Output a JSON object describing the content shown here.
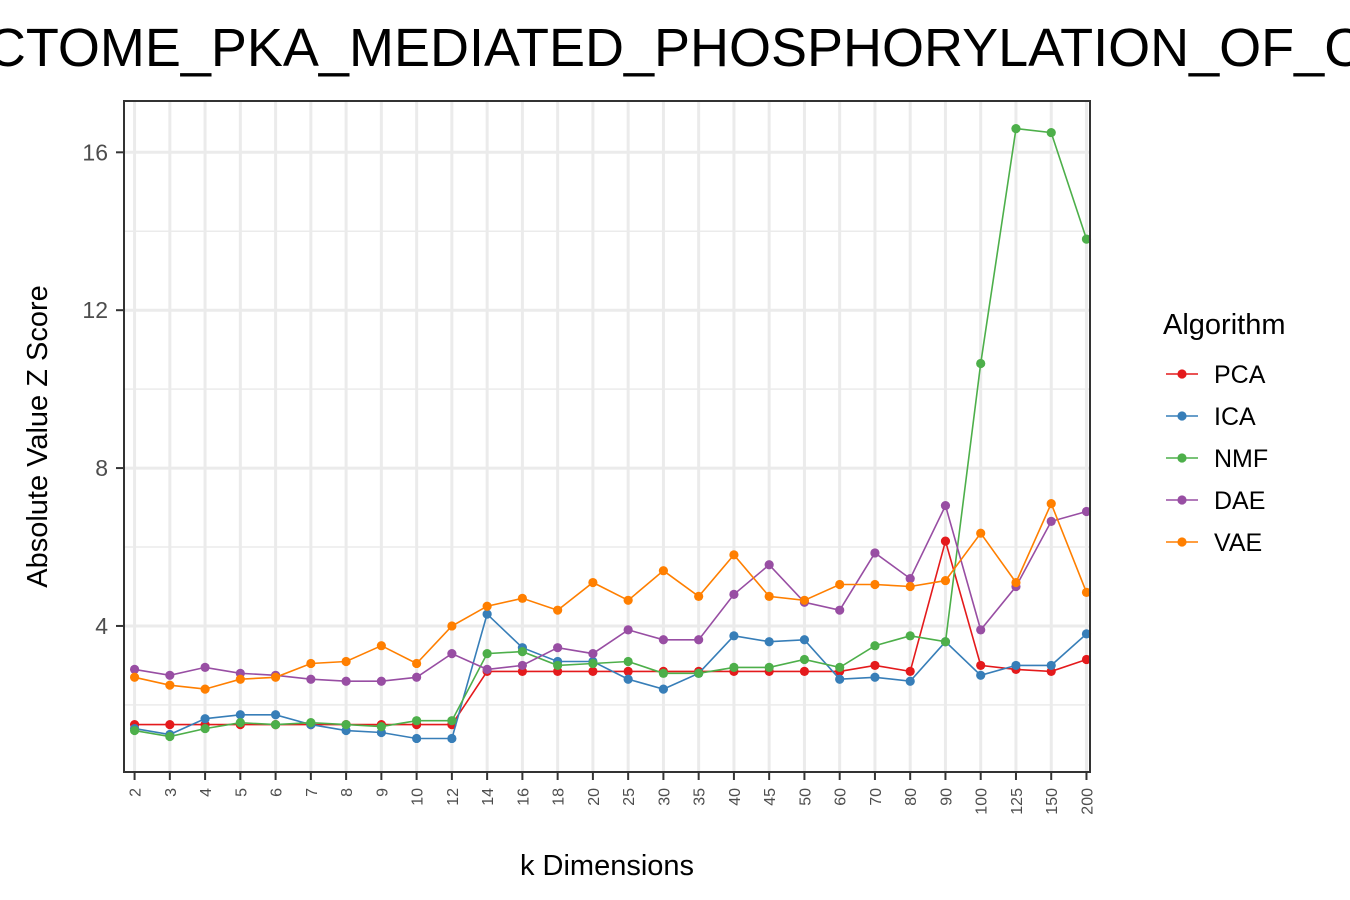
{
  "chart_data": {
    "type": "line",
    "title": "REACTOME_PKA_MEDIATED_PHOSPHORYLATION_OF_CREB",
    "xlabel": "k Dimensions",
    "ylabel": "Absolute Value Z Score",
    "categories": [
      "2",
      "3",
      "4",
      "5",
      "6",
      "7",
      "8",
      "9",
      "10",
      "12",
      "14",
      "16",
      "18",
      "20",
      "25",
      "30",
      "35",
      "40",
      "45",
      "50",
      "60",
      "70",
      "80",
      "90",
      "100",
      "125",
      "150",
      "200"
    ],
    "yticks": [
      4,
      8,
      12,
      16
    ],
    "ylim": [
      0.3,
      17.3
    ],
    "grid": true,
    "legend": {
      "title": "Algorithm",
      "position": "right"
    },
    "series": [
      {
        "name": "PCA",
        "color": "#e41a1c",
        "values": [
          1.5,
          1.5,
          1.5,
          1.5,
          1.5,
          1.5,
          1.5,
          1.5,
          1.5,
          1.5,
          2.85,
          2.85,
          2.85,
          2.85,
          2.85,
          2.85,
          2.85,
          2.85,
          2.85,
          2.85,
          2.85,
          3.0,
          2.85,
          6.15,
          3.0,
          2.9,
          2.85,
          3.15
        ]
      },
      {
        "name": "ICA",
        "color": "#377eb8",
        "values": [
          1.4,
          1.25,
          1.65,
          1.75,
          1.75,
          1.5,
          1.35,
          1.3,
          1.15,
          1.15,
          4.3,
          3.45,
          3.1,
          3.1,
          2.65,
          2.4,
          2.8,
          3.75,
          3.6,
          3.65,
          2.65,
          2.7,
          2.6,
          3.6,
          2.75,
          3.0,
          3.0,
          3.8
        ]
      },
      {
        "name": "NMF",
        "color": "#4daf4a",
        "values": [
          1.35,
          1.2,
          1.4,
          1.55,
          1.5,
          1.55,
          1.5,
          1.45,
          1.6,
          1.6,
          3.3,
          3.35,
          3.0,
          3.05,
          3.1,
          2.8,
          2.8,
          2.95,
          2.95,
          3.15,
          2.95,
          3.5,
          3.75,
          3.6,
          10.65,
          16.6,
          16.5,
          13.8
        ]
      },
      {
        "name": "DAE",
        "color": "#984ea3",
        "values": [
          2.9,
          2.75,
          2.95,
          2.8,
          2.75,
          2.65,
          2.6,
          2.6,
          2.7,
          3.3,
          2.9,
          3.0,
          3.45,
          3.3,
          3.9,
          3.65,
          3.65,
          4.8,
          5.55,
          4.6,
          4.4,
          5.85,
          5.2,
          7.05,
          3.9,
          5.0,
          6.65,
          6.9
        ]
      },
      {
        "name": "VAE",
        "color": "#ff7f00",
        "values": [
          2.7,
          2.5,
          2.4,
          2.65,
          2.7,
          3.05,
          3.1,
          3.5,
          3.05,
          4.0,
          4.5,
          4.7,
          4.4,
          5.1,
          4.65,
          5.4,
          4.75,
          5.8,
          4.75,
          4.65,
          5.05,
          5.05,
          5.0,
          5.15,
          6.35,
          5.1,
          7.1,
          4.85
        ]
      }
    ]
  }
}
